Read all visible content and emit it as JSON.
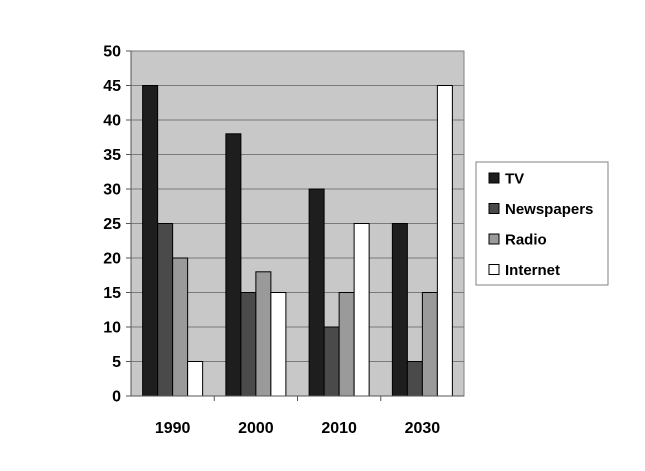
{
  "chart_data": {
    "type": "bar",
    "categories": [
      "1990",
      "2000",
      "2010",
      "2030"
    ],
    "series": [
      {
        "name": "TV",
        "values": [
          45,
          38,
          30,
          25
        ],
        "color": "#1e1e1e"
      },
      {
        "name": "Newspapers",
        "values": [
          25,
          15,
          10,
          5
        ],
        "color": "#4a4a4a"
      },
      {
        "name": "Radio",
        "values": [
          20,
          18,
          15,
          15
        ],
        "color": "#9a9a9a"
      },
      {
        "name": "Internet",
        "values": [
          5,
          15,
          25,
          45
        ],
        "color": "#ffffff"
      }
    ],
    "title": "",
    "xlabel": "",
    "ylabel": "",
    "ylim": [
      0,
      50
    ],
    "yticks": [
      "0",
      "5",
      "10",
      "15",
      "20",
      "25",
      "30",
      "35",
      "40",
      "45",
      "50"
    ],
    "grid": true,
    "legend_position": "right",
    "plot_background": "#c8c8c8"
  }
}
